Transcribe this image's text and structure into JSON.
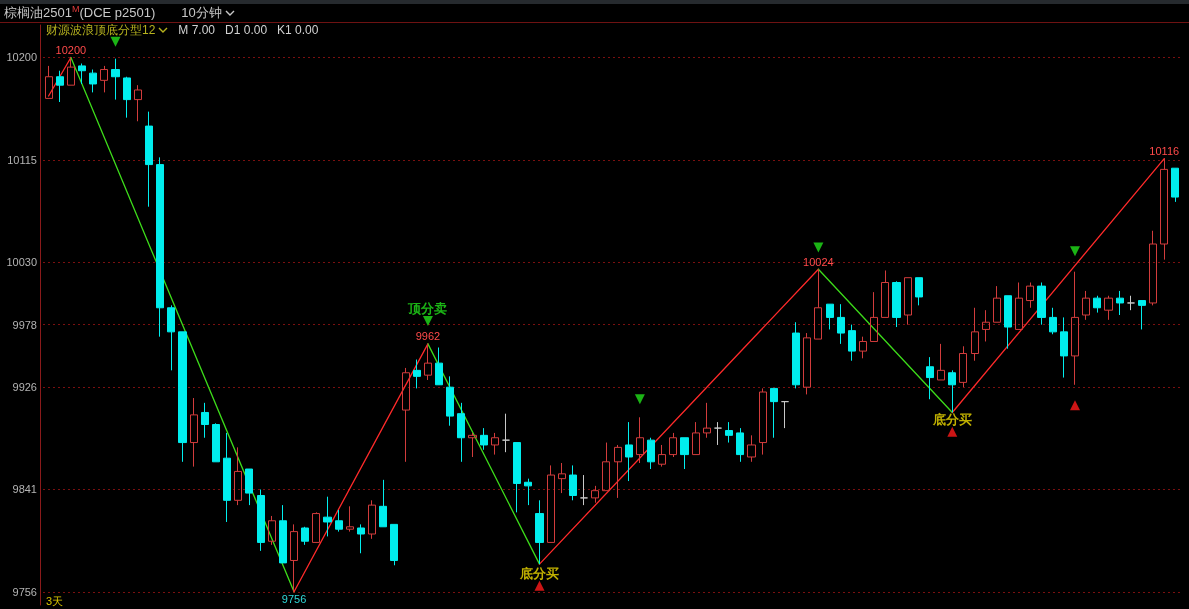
{
  "chart_data": {
    "type": "candlestick",
    "title": "棕榈油2501$^{M}$(DCE p2501)",
    "subtitle": "10分钟",
    "annotations": [
      "财源波浪顶底分型12",
      "M 7.00",
      "D1 0.00",
      "K1 0.00",
      "3天"
    ],
    "categories": [
      null,
      null,
      null,
      null,
      null,
      null,
      null,
      null,
      null,
      null,
      null,
      null,
      null,
      null,
      null,
      null,
      null,
      null,
      null,
      null,
      null,
      null,
      null,
      null,
      null,
      null,
      null,
      null,
      null,
      null,
      null,
      null,
      null,
      null,
      null,
      null,
      null,
      null,
      null,
      null,
      null,
      null,
      null,
      null,
      null,
      null,
      null,
      null,
      null,
      null,
      null,
      null,
      null,
      null,
      null,
      null,
      null,
      null,
      null,
      null,
      null,
      null,
      null,
      null,
      null,
      null,
      null,
      null,
      null,
      null,
      null,
      null,
      null,
      null,
      null,
      null,
      null,
      null,
      null,
      null,
      null,
      null,
      null,
      null,
      null,
      null,
      null,
      null,
      null,
      null,
      null,
      null,
      null,
      null,
      null,
      null,
      null,
      null,
      null,
      null,
      null,
      null
    ],
    "ohlc": [
      [
        10166,
        10193,
        10166,
        10184
      ],
      [
        10184,
        10189,
        10163,
        10177
      ],
      [
        10177,
        10200,
        10177,
        10192
      ],
      [
        10193,
        10195,
        10178,
        10189
      ],
      [
        10187,
        10190,
        10171,
        10178
      ],
      [
        10181,
        10193,
        10171,
        10190
      ],
      [
        10190,
        10199,
        10165,
        10184
      ],
      [
        10183,
        10184,
        10150,
        10165
      ],
      [
        10165,
        10177,
        10147,
        10173
      ],
      [
        10143,
        10155,
        10076,
        10111
      ],
      [
        10111,
        10117,
        9968,
        9992
      ],
      [
        9992,
        9994,
        9940,
        9972
      ],
      [
        9972,
        9972,
        9864,
        9880
      ],
      [
        9880,
        9917,
        9860,
        9903
      ],
      [
        9905,
        9913,
        9884,
        9895
      ],
      [
        9895,
        9896,
        9864,
        9864
      ],
      [
        9867,
        9888,
        9814,
        9832
      ],
      [
        9832,
        9876,
        9828,
        9856
      ],
      [
        9858,
        9858,
        9828,
        9838
      ],
      [
        9836,
        9841,
        9790,
        9797
      ],
      [
        9798,
        9819,
        9795,
        9815
      ],
      [
        9815,
        9828,
        9780,
        9780
      ],
      [
        9782,
        9812,
        9756,
        9806
      ],
      [
        9809,
        9810,
        9795,
        9798
      ],
      [
        9797,
        9822,
        9797,
        9821
      ],
      [
        9818,
        9835,
        9802,
        9814
      ],
      [
        9815,
        9824,
        9806,
        9808
      ],
      [
        9808,
        9827,
        9806,
        9810
      ],
      [
        9809,
        9812,
        9788,
        9804
      ],
      [
        9804,
        9832,
        9800,
        9828
      ],
      [
        9827,
        9849,
        9810,
        9810
      ],
      [
        9812,
        9812,
        9778,
        9782
      ],
      [
        9907,
        9942,
        9864,
        9938
      ],
      [
        9940,
        9949,
        9925,
        9935
      ],
      [
        9936,
        9962,
        9932,
        9946
      ],
      [
        9946,
        9959,
        9928,
        9928
      ],
      [
        9926,
        9935,
        9894,
        9902
      ],
      [
        9904,
        9913,
        9864,
        9884
      ],
      [
        9884,
        9888,
        9868,
        9886
      ],
      [
        9886,
        9892,
        9874,
        9878
      ],
      [
        9878,
        9888,
        9870,
        9884
      ],
      [
        9882,
        9904,
        9872,
        9882
      ],
      [
        9880,
        9880,
        9822,
        9846
      ],
      [
        9847,
        9850,
        9828,
        9844
      ],
      [
        9821,
        9832,
        9779,
        9797
      ],
      [
        9797,
        9861,
        9797,
        9853
      ],
      [
        9850,
        9863,
        9838,
        9854
      ],
      [
        9853,
        9861,
        9832,
        9836
      ],
      [
        9834,
        9853,
        9828,
        9834
      ],
      [
        9834,
        9844,
        9830,
        9840
      ],
      [
        9840,
        9880,
        9840,
        9864
      ],
      [
        9864,
        9878,
        9834,
        9876
      ],
      [
        9878,
        9897,
        9848,
        9868
      ],
      [
        9870,
        9901,
        9863,
        9884
      ],
      [
        9882,
        9884,
        9858,
        9864
      ],
      [
        9862,
        9878,
        9860,
        9870
      ],
      [
        9870,
        9888,
        9868,
        9884
      ],
      [
        9884,
        9884,
        9858,
        9870
      ],
      [
        9870,
        9897,
        9870,
        9888
      ],
      [
        9888,
        9913,
        9884,
        9892
      ],
      [
        9892,
        9897,
        9878,
        9892
      ],
      [
        9890,
        9897,
        9880,
        9886
      ],
      [
        9888,
        9892,
        9864,
        9870
      ],
      [
        9868,
        9886,
        9864,
        9878
      ],
      [
        9880,
        9925,
        9870,
        9922
      ],
      [
        9925,
        9925,
        9884,
        9914
      ],
      [
        9914,
        9914,
        9892,
        9914
      ],
      [
        9971,
        9980,
        9925,
        9928
      ],
      [
        9926,
        9971,
        9920,
        9967
      ],
      [
        9966,
        10024,
        9966,
        9992
      ],
      [
        9995,
        9995,
        9974,
        9984
      ],
      [
        9984,
        9995,
        9962,
        9971
      ],
      [
        9973,
        9978,
        9948,
        9956
      ],
      [
        9956,
        9968,
        9950,
        9964
      ],
      [
        9964,
        10005,
        9964,
        9984
      ],
      [
        9984,
        10023,
        9984,
        10013
      ],
      [
        10013,
        10014,
        9976,
        9984
      ],
      [
        9986,
        10017,
        9978,
        10017
      ],
      [
        10017,
        10017,
        9994,
        10001
      ],
      [
        9943,
        9951,
        9916,
        9934
      ],
      [
        9932,
        9962,
        9932,
        9940
      ],
      [
        9938,
        9940,
        9905,
        9928
      ],
      [
        9930,
        9960,
        9926,
        9954
      ],
      [
        9954,
        9992,
        9948,
        9972
      ],
      [
        9974,
        9990,
        9964,
        9980
      ],
      [
        9980,
        10010,
        9980,
        10000
      ],
      [
        10002,
        10002,
        9958,
        9976
      ],
      [
        9974,
        10013,
        9974,
        10000
      ],
      [
        9998,
        10013,
        9992,
        10010
      ],
      [
        10010,
        10013,
        9978,
        9984
      ],
      [
        9984,
        9992,
        9970,
        9972
      ],
      [
        9972,
        9984,
        9934,
        9952
      ],
      [
        9952,
        10022,
        9928,
        9984
      ],
      [
        9986,
        10006,
        9982,
        10000
      ],
      [
        10000,
        10002,
        9988,
        9992
      ],
      [
        9990,
        10002,
        9982,
        10000
      ],
      [
        10000,
        10006,
        9986,
        9996
      ],
      [
        9996,
        10002,
        9990,
        9996
      ],
      [
        9998,
        9998,
        9974,
        9994
      ],
      [
        9996,
        10056,
        9994,
        10045
      ],
      [
        10045,
        10116,
        10032,
        10107
      ],
      [
        10108,
        10108,
        10080,
        10084
      ]
    ],
    "series": [
      {
        "type": "line",
        "color": "#ff2a2a",
        "values": [
          10168,
          null,
          10200,
          null,
          null,
          null,
          null,
          null,
          null,
          null,
          null,
          null,
          null,
          null,
          null,
          null,
          null,
          null,
          null,
          null,
          null,
          null,
          null,
          null,
          null,
          null,
          null,
          null,
          null,
          null,
          null,
          null,
          null,
          null,
          null,
          null,
          null,
          null,
          null,
          null,
          null,
          null,
          null,
          null,
          null,
          null,
          null,
          null,
          null,
          null,
          null,
          null,
          null,
          null,
          null,
          null,
          null,
          null,
          null,
          null,
          null,
          null,
          null,
          null,
          null,
          null,
          null,
          null,
          null,
          null,
          null,
          null,
          null,
          null,
          null,
          null,
          null,
          null,
          null,
          null,
          null,
          null,
          null,
          null,
          null,
          null,
          null,
          null,
          null,
          null,
          null,
          null,
          null,
          null,
          null,
          null,
          null,
          null,
          null,
          null,
          null,
          null
        ],
        "value_labels": [
          null,
          null,
          "10200",
          null,
          null,
          null,
          null,
          null,
          null,
          null,
          null,
          null,
          null,
          null,
          null,
          null,
          null,
          null,
          null,
          null,
          null,
          null,
          null,
          null,
          null,
          null,
          null,
          null,
          null,
          null,
          null,
          null,
          null,
          null,
          null,
          null,
          null,
          null,
          null,
          null,
          null,
          null,
          null,
          null,
          null,
          null,
          null,
          null,
          null,
          null,
          null,
          null,
          null,
          null,
          null,
          null,
          null,
          null,
          null,
          null,
          null,
          null,
          null,
          null,
          null,
          null,
          null,
          null,
          null,
          null,
          null,
          null,
          null,
          null,
          null,
          null,
          null,
          null,
          null,
          null,
          null,
          null,
          null,
          null,
          null,
          null,
          null,
          null,
          null,
          null,
          null,
          null,
          null,
          null,
          null,
          null,
          null,
          null,
          null,
          null,
          null,
          null
        ]
      },
      {
        "type": "line",
        "color": "#3ddc1a",
        "values": [
          null,
          null,
          10200,
          null,
          null,
          null,
          null,
          null,
          null,
          null,
          null,
          null,
          null,
          null,
          null,
          null,
          null,
          null,
          null,
          null,
          null,
          null,
          9756,
          null,
          null,
          null,
          null,
          null,
          null,
          null,
          null,
          null,
          null,
          null,
          null,
          null,
          null,
          null,
          null,
          null,
          null,
          null,
          null,
          null,
          null,
          null,
          null,
          null,
          null,
          null,
          null,
          null,
          null,
          null,
          null,
          null,
          null,
          null,
          null,
          null,
          null,
          null,
          null,
          null,
          null,
          null,
          null,
          null,
          null,
          null,
          null,
          null,
          null,
          null,
          null,
          null,
          null,
          null,
          null,
          null,
          null,
          null,
          null,
          null,
          null,
          null,
          null,
          null,
          null,
          null,
          null,
          null,
          null,
          null,
          null,
          null,
          null,
          null,
          null,
          null,
          null,
          null
        ],
        "value_labels": [
          null,
          null,
          null,
          null,
          null,
          null,
          null,
          null,
          null,
          null,
          null,
          null,
          null,
          null,
          null,
          null,
          null,
          null,
          null,
          null,
          null,
          null,
          "9756",
          null,
          null,
          null,
          null,
          null,
          null,
          null,
          null,
          null,
          null,
          null,
          null,
          null,
          null,
          null,
          null,
          null,
          null,
          null,
          null,
          null,
          null,
          null,
          null,
          null,
          null,
          null,
          null,
          null,
          null,
          null,
          null,
          null,
          null,
          null,
          null,
          null,
          null,
          null,
          null,
          null,
          null,
          null,
          null,
          null,
          null,
          null,
          null,
          null,
          null,
          null,
          null,
          null,
          null,
          null,
          null,
          null,
          null,
          null,
          null,
          null,
          null,
          null,
          null,
          null,
          null,
          null,
          null,
          null,
          null,
          null,
          null,
          null,
          null,
          null,
          null,
          null,
          null,
          null
        ]
      },
      {
        "type": "line",
        "color": "#ff2a2a",
        "values": [
          null,
          null,
          null,
          null,
          null,
          null,
          null,
          null,
          null,
          null,
          null,
          null,
          null,
          null,
          null,
          null,
          null,
          null,
          null,
          null,
          null,
          null,
          9756,
          null,
          null,
          null,
          null,
          null,
          null,
          null,
          null,
          null,
          null,
          null,
          9962,
          null,
          null,
          null,
          null,
          null,
          null,
          null,
          null,
          null,
          null,
          null,
          null,
          null,
          null,
          null,
          null,
          null,
          null,
          null,
          null,
          null,
          null,
          null,
          null,
          null,
          null,
          null,
          null,
          null,
          null,
          null,
          null,
          null,
          null,
          null,
          null,
          null,
          null,
          null,
          null,
          null,
          null,
          null,
          null,
          null,
          null,
          null,
          null,
          null,
          null,
          null,
          null,
          null,
          null,
          null,
          null,
          null,
          null,
          null,
          null,
          null,
          null,
          null,
          null,
          null,
          null,
          null
        ],
        "value_labels": [
          null,
          null,
          null,
          null,
          null,
          null,
          null,
          null,
          null,
          null,
          null,
          null,
          null,
          null,
          null,
          null,
          null,
          null,
          null,
          null,
          null,
          null,
          null,
          null,
          null,
          null,
          null,
          null,
          null,
          null,
          null,
          null,
          null,
          null,
          "9962",
          null,
          null,
          null,
          null,
          null,
          null,
          null,
          null,
          null,
          null,
          null,
          null,
          null,
          null,
          null,
          null,
          null,
          null,
          null,
          null,
          null,
          null,
          null,
          null,
          null,
          null,
          null,
          null,
          null,
          null,
          null,
          null,
          null,
          null,
          null,
          null,
          null,
          null,
          null,
          null,
          null,
          null,
          null,
          null,
          null,
          null,
          null,
          null,
          null,
          null,
          null,
          null,
          null,
          null,
          null,
          null,
          null,
          null,
          null,
          null,
          null,
          null,
          null,
          null,
          null,
          null,
          null
        ]
      },
      {
        "type": "line",
        "color": "#3ddc1a",
        "values": [
          null,
          null,
          null,
          null,
          null,
          null,
          null,
          null,
          null,
          null,
          null,
          null,
          null,
          null,
          null,
          null,
          null,
          null,
          null,
          null,
          null,
          null,
          null,
          null,
          null,
          null,
          null,
          null,
          null,
          null,
          null,
          null,
          null,
          null,
          9962,
          null,
          null,
          null,
          null,
          null,
          null,
          null,
          null,
          null,
          9779,
          null,
          null,
          null,
          null,
          null,
          null,
          null,
          null,
          null,
          null,
          null,
          null,
          null,
          null,
          null,
          null,
          null,
          null,
          null,
          null,
          null,
          null,
          null,
          null,
          null,
          null,
          null,
          null,
          null,
          null,
          null,
          null,
          null,
          null,
          null,
          null,
          null,
          null,
          null,
          null,
          null,
          null,
          null,
          null,
          null,
          null,
          null,
          null,
          null,
          null,
          null,
          null,
          null,
          null,
          null,
          null,
          null
        ]
      },
      {
        "type": "line",
        "color": "#ff2a2a",
        "values": [
          null,
          null,
          null,
          null,
          null,
          null,
          null,
          null,
          null,
          null,
          null,
          null,
          null,
          null,
          null,
          null,
          null,
          null,
          null,
          null,
          null,
          null,
          null,
          null,
          null,
          null,
          null,
          null,
          null,
          null,
          null,
          null,
          null,
          null,
          null,
          null,
          null,
          null,
          null,
          null,
          null,
          null,
          null,
          null,
          9779,
          null,
          null,
          null,
          null,
          null,
          null,
          null,
          null,
          null,
          null,
          null,
          null,
          null,
          null,
          null,
          null,
          null,
          null,
          null,
          null,
          null,
          null,
          null,
          null,
          10024,
          null,
          null,
          null,
          null,
          null,
          null,
          null,
          null,
          null,
          null,
          null,
          null,
          null,
          null,
          null,
          null,
          null,
          null,
          null,
          null,
          null,
          null,
          null,
          null,
          null,
          null,
          null,
          null,
          null,
          null,
          null,
          null
        ],
        "value_labels": [
          null,
          null,
          null,
          null,
          null,
          null,
          null,
          null,
          null,
          null,
          null,
          null,
          null,
          null,
          null,
          null,
          null,
          null,
          null,
          null,
          null,
          null,
          null,
          null,
          null,
          null,
          null,
          null,
          null,
          null,
          null,
          null,
          null,
          null,
          null,
          null,
          null,
          null,
          null,
          null,
          null,
          null,
          null,
          null,
          null,
          null,
          null,
          null,
          null,
          null,
          null,
          null,
          null,
          null,
          null,
          null,
          null,
          null,
          null,
          null,
          null,
          null,
          null,
          null,
          null,
          null,
          null,
          null,
          null,
          "10024",
          null,
          null,
          null,
          null,
          null,
          null,
          null,
          null,
          null,
          null,
          null,
          null,
          null,
          null,
          null,
          null,
          null,
          null,
          null,
          null,
          null,
          null,
          null,
          null,
          null,
          null,
          null,
          null,
          null,
          null,
          null,
          null
        ]
      },
      {
        "type": "line",
        "color": "#3ddc1a",
        "values": [
          null,
          null,
          null,
          null,
          null,
          null,
          null,
          null,
          null,
          null,
          null,
          null,
          null,
          null,
          null,
          null,
          null,
          null,
          null,
          null,
          null,
          null,
          null,
          null,
          null,
          null,
          null,
          null,
          null,
          null,
          null,
          null,
          null,
          null,
          null,
          null,
          null,
          null,
          null,
          null,
          null,
          null,
          null,
          null,
          null,
          null,
          null,
          null,
          null,
          null,
          null,
          null,
          null,
          null,
          null,
          null,
          null,
          null,
          null,
          null,
          null,
          null,
          null,
          null,
          null,
          null,
          null,
          null,
          null,
          10024,
          null,
          null,
          null,
          null,
          null,
          null,
          null,
          null,
          null,
          null,
          null,
          9905,
          null,
          null,
          null,
          null,
          null,
          null,
          null,
          null,
          null,
          null,
          null,
          null,
          null,
          null,
          null,
          null,
          null,
          null,
          null,
          null
        ]
      },
      {
        "type": "line",
        "color": "#ff2a2a",
        "values": [
          null,
          null,
          null,
          null,
          null,
          null,
          null,
          null,
          null,
          null,
          null,
          null,
          null,
          null,
          null,
          null,
          null,
          null,
          null,
          null,
          null,
          null,
          null,
          null,
          null,
          null,
          null,
          null,
          null,
          null,
          null,
          null,
          null,
          null,
          null,
          null,
          null,
          null,
          null,
          null,
          null,
          null,
          null,
          null,
          null,
          null,
          null,
          null,
          null,
          null,
          null,
          null,
          null,
          null,
          null,
          null,
          null,
          null,
          null,
          null,
          null,
          null,
          null,
          null,
          null,
          null,
          null,
          null,
          null,
          null,
          null,
          null,
          null,
          null,
          null,
          null,
          null,
          null,
          null,
          null,
          null,
          9905,
          null,
          null,
          null,
          null,
          null,
          null,
          null,
          null,
          null,
          null,
          null,
          null,
          null,
          null,
          null,
          null,
          null,
          null,
          10116,
          null
        ],
        "value_labels": [
          null,
          null,
          null,
          null,
          null,
          null,
          null,
          null,
          null,
          null,
          null,
          null,
          null,
          null,
          null,
          null,
          null,
          null,
          null,
          null,
          null,
          null,
          null,
          null,
          null,
          null,
          null,
          null,
          null,
          null,
          null,
          null,
          null,
          null,
          null,
          null,
          null,
          null,
          null,
          null,
          null,
          null,
          null,
          null,
          null,
          null,
          null,
          null,
          null,
          null,
          null,
          null,
          null,
          null,
          null,
          null,
          null,
          null,
          null,
          null,
          null,
          null,
          null,
          null,
          null,
          null,
          null,
          null,
          null,
          null,
          null,
          null,
          null,
          null,
          null,
          null,
          null,
          null,
          null,
          null,
          null,
          null,
          null,
          null,
          null,
          null,
          null,
          null,
          null,
          null,
          null,
          null,
          null,
          null,
          null,
          null,
          null,
          null,
          null,
          null,
          "10116",
          null
        ]
      },
      {
        "type": "scatter",
        "color": "#22e01a",
        "marker": "triangle",
        "values": [
          null,
          null,
          null,
          null,
          null,
          null,
          10213,
          null,
          null,
          null,
          null,
          null,
          null,
          null,
          null,
          null,
          null,
          null,
          null,
          null,
          null,
          null,
          null,
          null,
          null,
          null,
          null,
          null,
          null,
          null,
          null,
          null,
          null,
          null,
          9981,
          null,
          null,
          null,
          null,
          null,
          null,
          null,
          null,
          null,
          null,
          null,
          null,
          null,
          null,
          null,
          null,
          null,
          null,
          9916,
          null,
          null,
          null,
          null,
          null,
          null,
          null,
          null,
          null,
          null,
          null,
          null,
          null,
          null,
          null,
          10042,
          null,
          null,
          null,
          null,
          null,
          null,
          null,
          null,
          null,
          null,
          null,
          null,
          null,
          null,
          null,
          null,
          null,
          null,
          null,
          null,
          null,
          null,
          10039,
          null,
          null,
          null,
          null,
          null,
          null,
          null,
          null,
          null
        ],
        "value_labels": [
          null,
          null,
          null,
          null,
          null,
          null,
          null,
          null,
          null,
          null,
          null,
          null,
          null,
          null,
          null,
          null,
          null,
          null,
          null,
          null,
          null,
          null,
          null,
          null,
          null,
          null,
          null,
          null,
          null,
          null,
          null,
          null,
          null,
          null,
          "顶分卖",
          null,
          null,
          null,
          null,
          null,
          null,
          null,
          null,
          null,
          null,
          null,
          null,
          null,
          null,
          null,
          null,
          null,
          null,
          null,
          null,
          null,
          null,
          null,
          null,
          null,
          null,
          null,
          null,
          null,
          null,
          null,
          null,
          null,
          null,
          null,
          null,
          null,
          null,
          null,
          null,
          null,
          null,
          null,
          null,
          null,
          null,
          null,
          null,
          null,
          null,
          null,
          null,
          null,
          null,
          null,
          null,
          null,
          null,
          null,
          null,
          null,
          null,
          null,
          null,
          null,
          null,
          null
        ]
      },
      {
        "type": "scatter",
        "color": "#ff1a1a",
        "marker": "triangle",
        "values": [
          null,
          null,
          null,
          null,
          null,
          null,
          null,
          null,
          null,
          null,
          null,
          null,
          null,
          null,
          null,
          null,
          null,
          null,
          null,
          null,
          null,
          null,
          null,
          null,
          null,
          null,
          null,
          null,
          null,
          null,
          null,
          null,
          null,
          null,
          null,
          null,
          null,
          null,
          null,
          null,
          null,
          null,
          null,
          null,
          9761,
          null,
          null,
          null,
          null,
          null,
          null,
          null,
          null,
          null,
          null,
          null,
          null,
          null,
          null,
          null,
          null,
          null,
          null,
          null,
          null,
          null,
          null,
          null,
          null,
          null,
          null,
          null,
          null,
          null,
          null,
          null,
          null,
          null,
          null,
          null,
          null,
          9889,
          null,
          null,
          null,
          null,
          null,
          null,
          null,
          null,
          null,
          null,
          9911,
          null,
          null,
          null,
          null,
          null,
          null,
          null,
          null,
          null
        ],
        "value_labels": [
          null,
          null,
          null,
          null,
          null,
          null,
          null,
          null,
          null,
          null,
          null,
          null,
          null,
          null,
          null,
          null,
          null,
          null,
          null,
          null,
          null,
          null,
          null,
          null,
          null,
          null,
          null,
          null,
          null,
          null,
          null,
          null,
          null,
          null,
          null,
          null,
          null,
          null,
          null,
          null,
          null,
          null,
          null,
          null,
          "底分买",
          null,
          null,
          null,
          null,
          null,
          null,
          null,
          null,
          null,
          null,
          null,
          null,
          null,
          null,
          null,
          null,
          null,
          null,
          null,
          null,
          null,
          null,
          null,
          null,
          null,
          null,
          null,
          null,
          null,
          null,
          null,
          null,
          null,
          null,
          null,
          null,
          "底分买",
          null,
          null,
          null,
          null,
          null,
          null,
          null,
          null,
          null,
          null,
          null,
          null,
          null,
          null,
          null,
          null,
          null,
          null,
          null,
          null
        ]
      }
    ],
    "ylim": [
      9745,
      10227
    ],
    "yticks": [
      9756,
      9841,
      9926,
      9978,
      10030,
      10115,
      10200
    ],
    "grid": "y",
    "tick_labels": "y"
  }
}
